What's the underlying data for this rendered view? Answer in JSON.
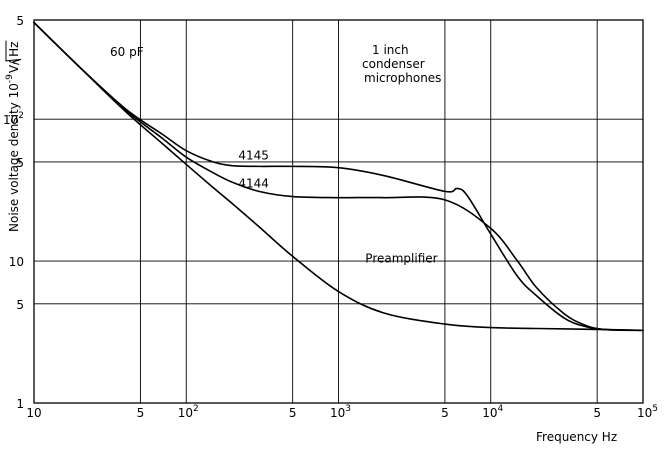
{
  "chart_data": {
    "type": "line",
    "x_scale": "log",
    "y_scale": "log",
    "xlim": [
      10,
      100000
    ],
    "ylim": [
      1,
      500
    ],
    "grid": true,
    "xlabel": "Frequency Hz",
    "ylabel_main": "Noise voltage density  10",
    "ylabel_exponent": "-9",
    "ylabel_unit": "V/",
    "ylabel_sqrt": "Hz",
    "x_ticks": [
      {
        "value": 10,
        "label": "10",
        "sup": ""
      },
      {
        "value": 50,
        "label": "5",
        "sup": ""
      },
      {
        "value": 100,
        "label": "10",
        "sup": "2"
      },
      {
        "value": 500,
        "label": "5",
        "sup": ""
      },
      {
        "value": 1000,
        "label": "10",
        "sup": "3"
      },
      {
        "value": 5000,
        "label": "5",
        "sup": ""
      },
      {
        "value": 10000,
        "label": "10",
        "sup": "4"
      },
      {
        "value": 50000,
        "label": "5",
        "sup": ""
      },
      {
        "value": 100000,
        "label": "10",
        "sup": "5"
      }
    ],
    "y_ticks": [
      {
        "value": 1,
        "label": "1",
        "sup": ""
      },
      {
        "value": 5,
        "label": "5",
        "sup": ""
      },
      {
        "value": 10,
        "label": "10",
        "sup": ""
      },
      {
        "value": 50,
        "label": "5",
        "sup": ""
      },
      {
        "value": 100,
        "label": "10",
        "sup": "2"
      },
      {
        "value": 500,
        "label": "5",
        "sup": ""
      }
    ],
    "annotations": {
      "capacitance": "60 pF",
      "title_lines": [
        "1 inch",
        "condenser",
        "microphones"
      ]
    },
    "series": [
      {
        "name": "4145",
        "x": [
          10,
          20,
          40,
          70,
          100,
          150,
          200,
          300,
          500,
          1000,
          2000,
          5000,
          6000,
          7000,
          10000,
          15000,
          20000,
          30000,
          40000,
          55000,
          100000
        ],
        "y": [
          480,
          232,
          118,
          78,
          60,
          50,
          47,
          46.5,
          46.5,
          45.5,
          40,
          31,
          32.5,
          29,
          15.5,
          7.8,
          5.7,
          4.0,
          3.5,
          3.3,
          3.25
        ]
      },
      {
        "name": "4144",
        "x": [
          10,
          20,
          40,
          70,
          100,
          150,
          200,
          300,
          500,
          1000,
          2000,
          5000,
          10000,
          15000,
          20000,
          30000,
          40000,
          55000,
          100000
        ],
        "y": [
          480,
          232,
          116,
          73,
          54,
          42,
          36,
          31,
          28.5,
          28,
          28,
          27,
          17,
          10,
          6.5,
          4.3,
          3.6,
          3.3,
          3.25
        ]
      },
      {
        "name": "Preamplifier",
        "x": [
          10,
          20,
          40,
          70,
          100,
          150,
          200,
          300,
          500,
          1000,
          2000,
          5000,
          10000,
          20000,
          50000,
          100000
        ],
        "y": [
          480,
          232,
          113,
          67,
          48,
          33,
          25.5,
          17.5,
          10.8,
          6.1,
          4.3,
          3.6,
          3.4,
          3.35,
          3.3,
          3.25
        ]
      }
    ],
    "curve_labels": {
      "4145": {
        "x": 220,
        "y": 52
      },
      "4144": {
        "x": 220,
        "y": 33
      },
      "Preamplifier": {
        "x": 1500,
        "y": 9.8
      }
    }
  }
}
